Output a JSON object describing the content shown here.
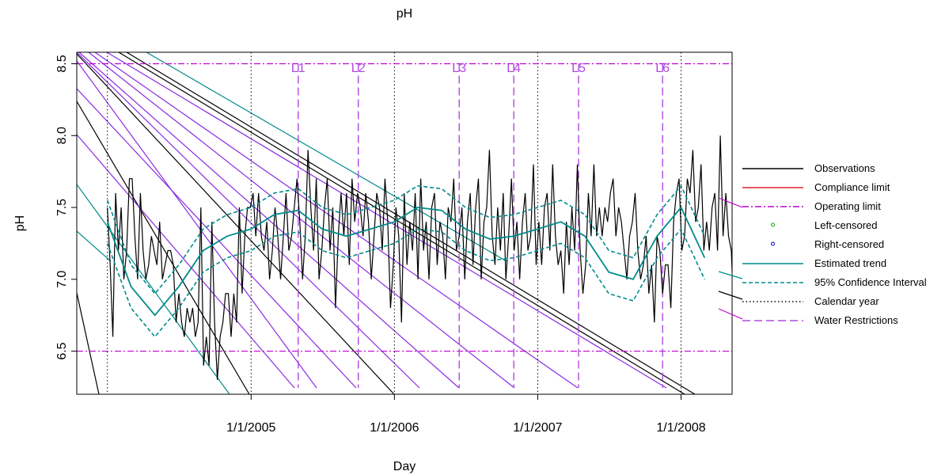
{
  "chart_data": {
    "type": "line",
    "title": "pH",
    "xlabel": "Day",
    "ylabel": "pH",
    "xlim": [
      "2003-10-15",
      "2008-05-10"
    ],
    "ylim": [
      6.2,
      8.58
    ],
    "y_ticks": [
      6.5,
      7.0,
      7.5,
      8.0,
      8.5
    ],
    "x_ticks": [
      {
        "date": "2005-01-01",
        "label": "1/1/2005"
      },
      {
        "date": "2006-01-01",
        "label": "1/1/2006"
      },
      {
        "date": "2007-01-01",
        "label": "1/1/2007"
      },
      {
        "date": "2008-01-01",
        "label": "1/1/2008"
      }
    ],
    "calendar_year_lines": [
      "2004-01-01",
      "2005-01-01",
      "2006-01-01",
      "2007-01-01",
      "2008-01-01"
    ],
    "operating_limits": [
      6.5,
      8.5
    ],
    "water_restrictions": [
      {
        "label": "L1",
        "date": "2005-05-01"
      },
      {
        "label": "L2",
        "date": "2005-10-01"
      },
      {
        "label": "L3",
        "date": "2006-06-15"
      },
      {
        "label": "L4",
        "date": "2006-11-01"
      },
      {
        "label": "L5",
        "date": "2007-04-15"
      },
      {
        "label": "L6",
        "date": "2007-11-15"
      }
    ],
    "observations": {
      "start": "2004-01-01",
      "step_days": 7,
      "values": [
        7.5,
        7.1,
        6.6,
        7.6,
        7.2,
        7.5,
        7.0,
        7.2,
        7.7,
        7.7,
        7.3,
        7.0,
        7.6,
        7.2,
        7.0,
        7.1,
        7.3,
        7.2,
        7.1,
        7.4,
        7.0,
        7.1,
        7.2,
        7.2,
        7.1,
        6.7,
        6.9,
        6.7,
        6.6,
        6.8,
        6.7,
        6.8,
        6.6,
        6.7,
        7.5,
        6.4,
        6.6,
        6.4,
        7.4,
        6.7,
        6.3,
        6.6,
        6.7,
        6.9,
        6.9,
        6.6,
        6.9,
        6.7,
        7.5,
        6.9,
        7.3,
        7.5,
        7.5,
        7.6,
        7.3,
        7.6,
        7.3,
        7.2,
        7.4,
        7.0,
        7.2,
        7.5,
        7.3,
        7.0,
        7.3,
        7.6,
        7.2,
        7.3,
        7.5,
        7.7,
        7.4,
        7.0,
        7.3,
        7.9,
        7.5,
        7.2,
        7.7,
        7.0,
        7.2,
        7.5,
        7.7,
        7.2,
        7.5,
        6.8,
        7.3,
        7.6,
        7.3,
        7.6,
        7.1,
        7.7,
        7.4,
        7.6,
        7.5,
        7.3,
        7.6,
        7.4,
        7.0,
        7.3,
        7.6,
        7.5,
        7.2,
        7.7,
        7.4,
        6.8,
        7.1,
        7.5,
        7.3,
        6.7,
        7.6,
        7.1,
        7.4,
        7.2,
        7.6,
        7.0,
        7.7,
        7.2,
        7.4,
        7.0,
        7.5,
        7.6,
        7.1,
        7.4,
        7.3,
        7.0,
        7.5,
        7.4,
        7.7,
        7.2,
        7.3,
        7.5,
        7.0,
        7.4,
        7.6,
        7.1,
        7.5,
        7.7,
        7.0,
        7.4,
        7.5,
        7.9,
        7.3,
        7.1,
        7.5,
        7.2,
        7.6,
        7.0,
        7.3,
        7.7,
        7.2,
        7.4,
        7.0,
        7.4,
        7.6,
        7.2,
        7.3,
        7.8,
        7.1,
        7.4,
        7.1,
        7.5,
        7.6,
        7.2,
        7.8,
        7.3,
        7.1,
        7.2,
        6.9,
        7.4,
        7.1,
        7.5,
        7.2,
        7.8,
        7.2,
        6.9,
        7.1,
        7.6,
        7.3,
        7.8,
        7.3,
        7.5,
        7.3,
        7.5,
        7.4,
        7.6,
        7.7,
        7.3,
        7.5,
        7.4,
        7.2,
        7.0,
        7.3,
        7.4,
        7.6,
        7.2,
        7.0,
        7.1,
        7.3,
        6.9,
        7.1,
        6.7,
        7.3,
        7.2,
        6.9,
        7.1,
        7.1,
        6.8,
        7.4,
        7.6,
        7.7,
        7.2,
        7.3,
        7.7,
        7.6,
        7.9,
        7.4,
        7.5,
        7.8,
        7.2,
        7.4,
        7.2,
        7.5,
        7.6,
        7.2,
        8.0,
        7.3,
        7.6,
        7.3,
        7.2,
        6.7,
        7.3,
        7.2
      ]
    },
    "estimated_trend": {
      "x": [
        "2004-01-01",
        "2004-03-01",
        "2004-05-01",
        "2004-07-01",
        "2004-09-01",
        "2004-11-01",
        "2005-01-01",
        "2005-03-01",
        "2005-05-01",
        "2005-07-01",
        "2005-09-01",
        "2005-11-01",
        "2006-01-01",
        "2006-03-01",
        "2006-05-01",
        "2006-07-01",
        "2006-09-01",
        "2006-11-01",
        "2007-01-01",
        "2007-03-01",
        "2007-05-01",
        "2007-07-01",
        "2007-09-01",
        "2007-11-01",
        "2008-01-01",
        "2008-03-01"
      ],
      "y": [
        7.4,
        6.95,
        6.75,
        6.95,
        7.2,
        7.3,
        7.35,
        7.45,
        7.48,
        7.35,
        7.3,
        7.35,
        7.4,
        7.5,
        7.48,
        7.35,
        7.28,
        7.3,
        7.35,
        7.4,
        7.3,
        7.05,
        7.0,
        7.3,
        7.5,
        7.15
      ],
      "ci_halfwidth": 0.15
    },
    "legend": {
      "position": "right",
      "entries": [
        {
          "label": "Observations",
          "color": "#000000",
          "style": "solid"
        },
        {
          "label": "Compliance limit",
          "color": "#e8202c",
          "style": "solid"
        },
        {
          "label": "Operating limit",
          "color": "#c000d0",
          "style": "dashdot"
        },
        {
          "label": "Left-censored",
          "color": "#00b000",
          "style": "point"
        },
        {
          "label": "Right-censored",
          "color": "#0000d0",
          "style": "point"
        },
        {
          "label": "Estimated trend",
          "color": "#008b8b",
          "style": "solid"
        },
        {
          "label": "95% Confidence Interval",
          "color": "#008b8b",
          "style": "dashed"
        },
        {
          "label": "Calendar year",
          "color": "#000000",
          "style": "dotted"
        },
        {
          "label": "Water Restrictions",
          "color": "#b048e0",
          "style": "longdash"
        }
      ]
    },
    "grid": false
  }
}
